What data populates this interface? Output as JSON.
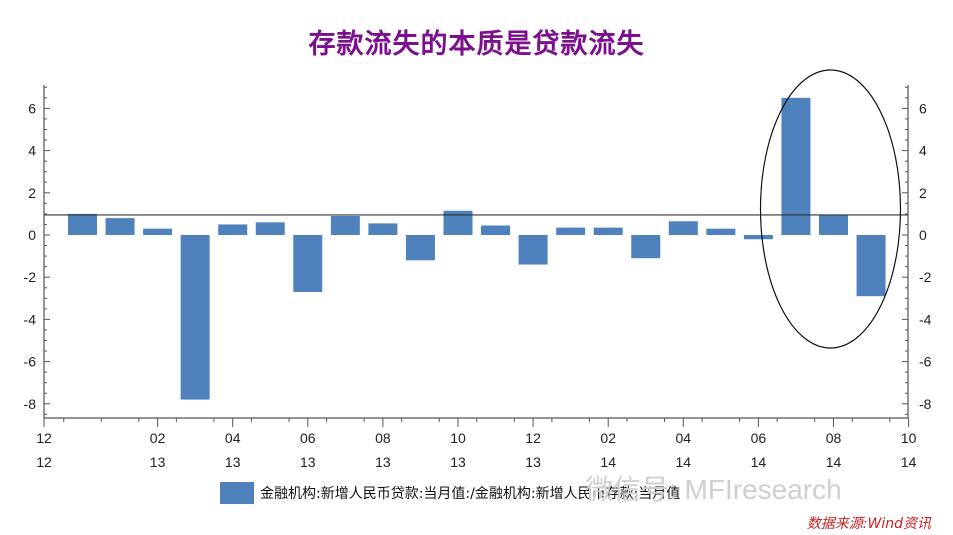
{
  "title": "存款流失的本质是贷款流失",
  "source": "数据来源:Wind资讯",
  "watermark": "微信号: MFIresearch",
  "chart_data": {
    "type": "bar",
    "title": "存款流失的本质是贷款流失",
    "series": [
      {
        "name": "金融机构:新增人民币贷款:当月值:/金融机构:新增人民币存款:当月值",
        "color": "#4f81bd",
        "values": [
          1.0,
          0.8,
          0.3,
          -7.8,
          0.5,
          0.6,
          -2.7,
          0.9,
          0.55,
          -1.2,
          1.15,
          0.45,
          -1.4,
          0.35,
          0.35,
          -1.1,
          0.65,
          0.3,
          -0.2,
          6.5,
          0.95,
          -2.9
        ]
      }
    ],
    "x_labels": [
      {
        "index": 0,
        "month": "12",
        "year": "12"
      },
      {
        "index": 2,
        "month": "02",
        "year": "13"
      },
      {
        "index": 4,
        "month": "04",
        "year": "13"
      },
      {
        "index": 6,
        "month": "06",
        "year": "13"
      },
      {
        "index": 8,
        "month": "08",
        "year": "13"
      },
      {
        "index": 10,
        "month": "10",
        "year": "13"
      },
      {
        "index": 12,
        "month": "12",
        "year": "13"
      },
      {
        "index": 14,
        "month": "02",
        "year": "14"
      },
      {
        "index": 16,
        "month": "04",
        "year": "14"
      },
      {
        "index": 18,
        "month": "06",
        "year": "14"
      },
      {
        "index": 20,
        "month": "08",
        "year": "14"
      },
      {
        "index": 22,
        "month": "10",
        "year": "14"
      }
    ],
    "yticks": [
      -8,
      -6,
      -4,
      -2,
      0,
      2,
      4,
      6
    ],
    "ylim": [
      -8.7,
      7.1
    ],
    "reference_line": 0.95,
    "legend_position": "bottom",
    "grid": false,
    "annotation": "ellipse around last three bars"
  }
}
